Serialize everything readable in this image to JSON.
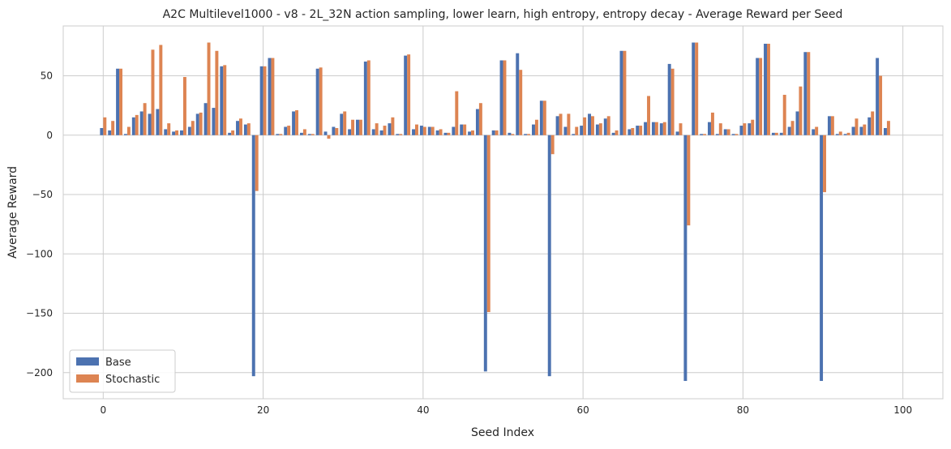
{
  "chart_data": {
    "type": "bar",
    "title": "A2C Multilevel1000 - v8 - 2L_32N action sampling, lower learn, high entropy, entropy decay - Average Reward per Seed",
    "xlabel": "Seed Index",
    "ylabel": "Average Reward",
    "xlim": [
      -5,
      105
    ],
    "ylim": [
      -222,
      92
    ],
    "xticks": [
      0,
      20,
      40,
      60,
      80,
      100
    ],
    "yticks": [
      -200,
      -150,
      -100,
      -50,
      0,
      50
    ],
    "grid": true,
    "legend_position": "lower-left",
    "colors": {
      "Base": "#4c72b0",
      "Stochastic": "#dd8452",
      "grid": "#cccccc",
      "axes": "#cccccc"
    },
    "x": [
      0,
      1,
      2,
      3,
      4,
      5,
      6,
      7,
      8,
      9,
      10,
      11,
      12,
      13,
      14,
      15,
      16,
      17,
      18,
      19,
      20,
      21,
      22,
      23,
      24,
      25,
      26,
      27,
      28,
      29,
      30,
      31,
      32,
      33,
      34,
      35,
      36,
      37,
      38,
      39,
      40,
      41,
      42,
      43,
      44,
      45,
      46,
      47,
      48,
      49,
      50,
      51,
      52,
      53,
      54,
      55,
      56,
      57,
      58,
      59,
      60,
      61,
      62,
      63,
      64,
      65,
      66,
      67,
      68,
      69,
      70,
      71,
      72,
      73,
      74,
      75,
      76,
      77,
      78,
      79,
      80,
      81,
      82,
      83,
      84,
      85,
      86,
      87,
      88,
      89,
      90,
      91,
      92,
      93,
      94,
      95,
      96,
      97,
      98,
      99
    ],
    "series": [
      {
        "name": "Base",
        "values": [
          6,
          4,
          56,
          1,
          15,
          20,
          18,
          22,
          5,
          3,
          4,
          7,
          18,
          27,
          23,
          58,
          2,
          12,
          9,
          -203,
          58,
          65,
          1,
          7,
          20,
          2,
          1,
          56,
          3,
          7,
          18,
          5,
          13,
          62,
          5,
          4,
          10,
          1,
          67,
          5,
          8,
          7,
          4,
          2,
          7,
          9,
          3,
          22,
          -199,
          4,
          63,
          2,
          69,
          1,
          9,
          29,
          -203,
          16,
          7,
          1,
          8,
          18,
          9,
          14,
          2,
          71,
          5,
          8,
          11,
          11,
          10,
          60,
          3,
          -207,
          78,
          1,
          11,
          1,
          5,
          1,
          8,
          10,
          65,
          77,
          2,
          2,
          7,
          20,
          70,
          5,
          -207,
          16,
          1,
          1,
          7,
          7,
          15,
          65,
          6,
          0
        ]
      },
      {
        "name": "Stochastic",
        "values": [
          15,
          12,
          56,
          7,
          17,
          27,
          72,
          76,
          10,
          4,
          49,
          12,
          19,
          78,
          71,
          59,
          4,
          14,
          10,
          -47,
          58,
          65,
          1,
          8,
          21,
          5,
          1,
          57,
          -3,
          6,
          20,
          13,
          13,
          63,
          10,
          8,
          15,
          1,
          68,
          9,
          7,
          7,
          5,
          2,
          37,
          9,
          4,
          27,
          -149,
          4,
          63,
          1,
          55,
          1,
          13,
          29,
          -16,
          18,
          18,
          7,
          15,
          16,
          10,
          16,
          4,
          71,
          6,
          8,
          33,
          11,
          11,
          56,
          10,
          -76,
          78,
          1,
          19,
          10,
          5,
          1,
          10,
          13,
          65,
          77,
          2,
          34,
          12,
          41,
          70,
          7,
          -48,
          16,
          3,
          2,
          14,
          9,
          20,
          50,
          12,
          0
        ]
      }
    ]
  }
}
